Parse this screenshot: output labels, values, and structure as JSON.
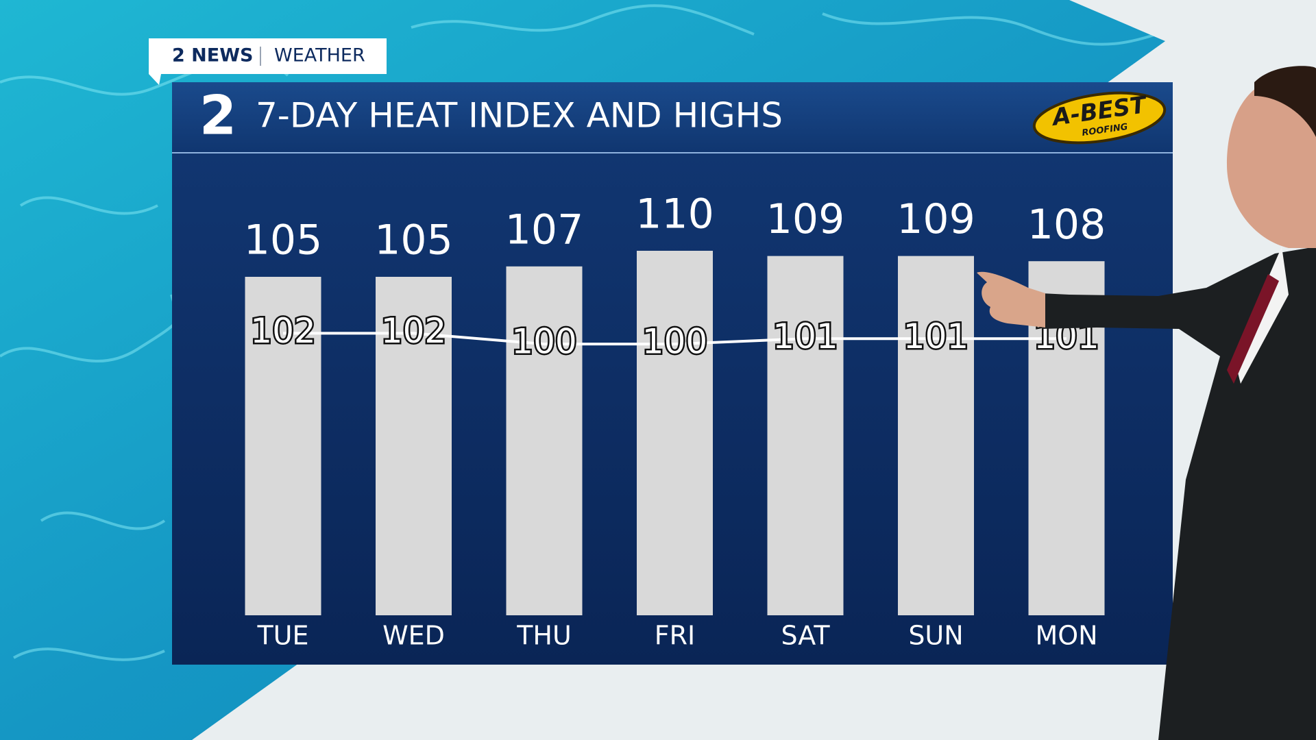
{
  "header": {
    "station": "2 NEWS",
    "section": "WEATHER"
  },
  "sponsor": {
    "name": "A-BEST",
    "tagline": "ROOFING"
  },
  "chart_data": {
    "type": "bar",
    "logo": "2",
    "title": "7-DAY HEAT INDEX AND HIGHS",
    "categories": [
      "TUE",
      "WED",
      "THU",
      "FRI",
      "SAT",
      "SUN",
      "MON"
    ],
    "series": [
      {
        "type": "bar",
        "color": "#d9d9d9",
        "values": [
          105,
          105,
          107,
          110,
          109,
          109,
          108
        ]
      },
      {
        "type": "line",
        "axis": "y2",
        "color": "#ffffff",
        "values": [
          102,
          102,
          100,
          100,
          101,
          101,
          101
        ]
      }
    ],
    "ylim": [
      40,
      115
    ],
    "y2lim": [
      50,
      122
    ]
  }
}
